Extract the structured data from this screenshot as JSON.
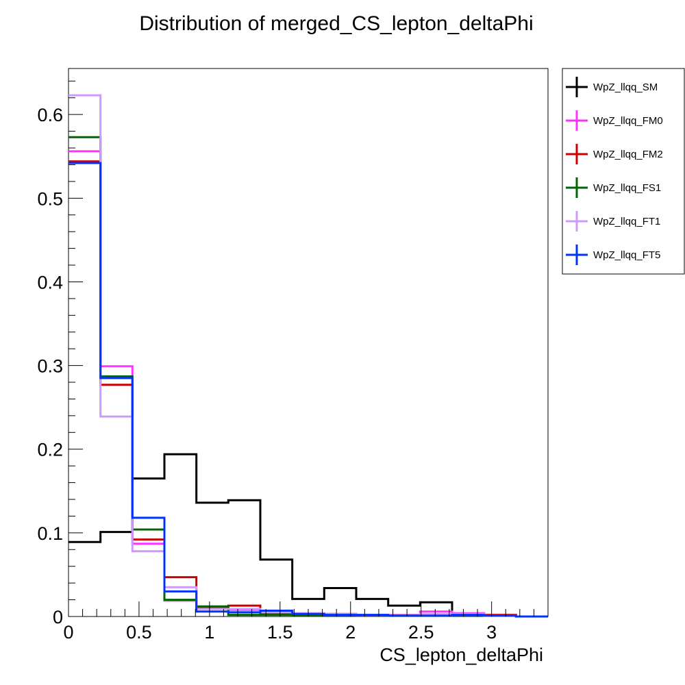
{
  "chart_data": {
    "type": "histogram-step",
    "title": "Distribution of merged_CS_lepton_deltaPhi",
    "xlabel": "CS_lepton_deltaPhi",
    "ylabel": "",
    "xlim": [
      0,
      3.4
    ],
    "ylim": [
      0,
      0.655
    ],
    "bin_edges": [
      0,
      0.227,
      0.453,
      0.68,
      0.907,
      1.133,
      1.36,
      1.587,
      1.813,
      2.04,
      2.267,
      2.493,
      2.72,
      2.947,
      3.173,
      3.4
    ],
    "x_ticks": [
      {
        "value": 0,
        "label": "0"
      },
      {
        "value": 0.5,
        "label": "0.5"
      },
      {
        "value": 1,
        "label": "1"
      },
      {
        "value": 1.5,
        "label": "1.5"
      },
      {
        "value": 2,
        "label": "2"
      },
      {
        "value": 2.5,
        "label": "2.5"
      },
      {
        "value": 3,
        "label": "3"
      }
    ],
    "y_ticks": [
      {
        "value": 0,
        "label": "0"
      },
      {
        "value": 0.1,
        "label": "0.1"
      },
      {
        "value": 0.2,
        "label": "0.2"
      },
      {
        "value": 0.3,
        "label": "0.3"
      },
      {
        "value": 0.4,
        "label": "0.4"
      },
      {
        "value": 0.5,
        "label": "0.5"
      },
      {
        "value": 0.6,
        "label": "0.6"
      }
    ],
    "grid": false,
    "legend_position": "top-right-outside",
    "series": [
      {
        "name": "WpZ_llqq_SM",
        "color": "#000000",
        "values": [
          0.089,
          0.101,
          0.165,
          0.194,
          0.136,
          0.139,
          0.068,
          0.021,
          0.034,
          0.021,
          0.013,
          0.017,
          0.003,
          0.001,
          0.0
        ]
      },
      {
        "name": "WpZ_llqq_FM0",
        "color": "#ff33ff",
        "values": [
          0.556,
          0.299,
          0.087,
          0.019,
          0.011,
          0.008,
          0.004,
          0.003,
          0.002,
          0.002,
          0.002,
          0.006,
          0.004,
          0.001,
          0.0
        ]
      },
      {
        "name": "WpZ_llqq_FM2",
        "color": "#cc0000",
        "values": [
          0.544,
          0.277,
          0.092,
          0.047,
          0.011,
          0.013,
          0.004,
          0.003,
          0.003,
          0.001,
          0.002,
          0.002,
          0.002,
          0.002,
          0.0
        ]
      },
      {
        "name": "WpZ_llqq_FS1",
        "color": "#006600",
        "values": [
          0.573,
          0.287,
          0.104,
          0.02,
          0.012,
          0.002,
          0.002,
          0.001,
          0.001,
          0.001,
          0.001,
          0.001,
          0.001,
          0.001,
          0.0
        ]
      },
      {
        "name": "WpZ_llqq_FT1",
        "color": "#cc99ff",
        "values": [
          0.623,
          0.239,
          0.078,
          0.035,
          0.009,
          0.009,
          0.005,
          0.004,
          0.003,
          0.002,
          0.002,
          0.003,
          0.003,
          0.001,
          0.0
        ]
      },
      {
        "name": "WpZ_llqq_FT5",
        "color": "#0033ff",
        "values": [
          0.542,
          0.285,
          0.118,
          0.03,
          0.006,
          0.005,
          0.007,
          0.003,
          0.002,
          0.002,
          0.001,
          0.001,
          0.002,
          0.001,
          0.0
        ]
      }
    ]
  }
}
